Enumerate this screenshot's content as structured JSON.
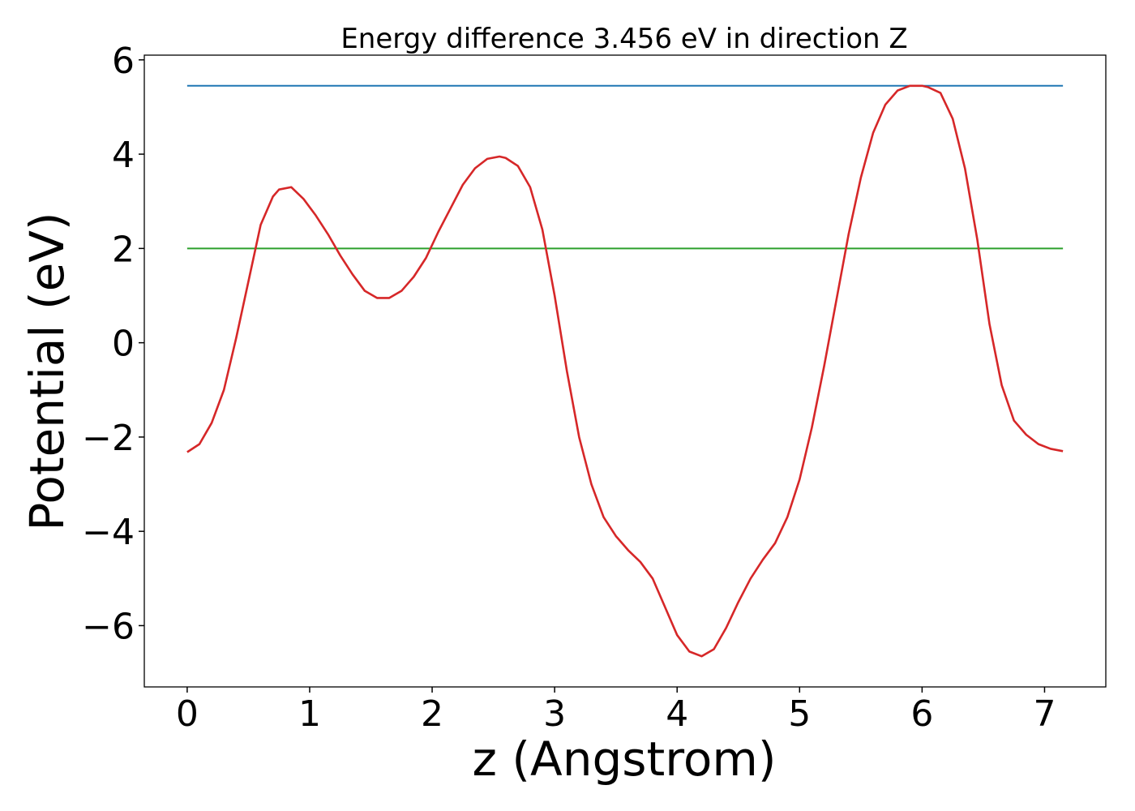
{
  "chart_data": {
    "type": "line",
    "title": "Energy difference 3.456 eV in direction Z",
    "xlabel": "z (Angstrom)",
    "ylabel": "Potential (eV)",
    "xlim": [
      -0.35,
      7.5
    ],
    "ylim": [
      -7.3,
      6.1
    ],
    "xticks": [
      0,
      1,
      2,
      3,
      4,
      5,
      6,
      7
    ],
    "yticks": [
      -6,
      -4,
      -2,
      0,
      2,
      4,
      6
    ],
    "xtick_labels": [
      "0",
      "1",
      "2",
      "3",
      "4",
      "5",
      "6",
      "7"
    ],
    "ytick_labels": [
      "−6",
      "−4",
      "−2",
      "0",
      "2",
      "4",
      "6"
    ],
    "grid": false,
    "series": [
      {
        "color": "#d62728",
        "x": [
          0,
          0.1,
          0.2,
          0.3,
          0.4,
          0.5,
          0.6,
          0.7,
          0.75,
          0.85,
          0.95,
          1.05,
          1.15,
          1.25,
          1.35,
          1.45,
          1.55,
          1.65,
          1.75,
          1.85,
          1.95,
          2.05,
          2.15,
          2.25,
          2.35,
          2.45,
          2.55,
          2.6,
          2.7,
          2.8,
          2.9,
          3.0,
          3.1,
          3.2,
          3.3,
          3.4,
          3.5,
          3.6,
          3.7,
          3.8,
          3.9,
          4.0,
          4.1,
          4.2,
          4.3,
          4.4,
          4.5,
          4.6,
          4.7,
          4.8,
          4.9,
          5.0,
          5.1,
          5.2,
          5.3,
          5.4,
          5.5,
          5.6,
          5.7,
          5.8,
          5.9,
          6.0,
          6.05,
          6.15,
          6.25,
          6.35,
          6.45,
          6.55,
          6.65,
          6.75,
          6.85,
          6.95,
          7.05,
          7.15
        ],
        "y": [
          -2.32,
          -2.15,
          -1.7,
          -1.0,
          0.1,
          1.3,
          2.5,
          3.1,
          3.25,
          3.3,
          3.05,
          2.7,
          2.3,
          1.85,
          1.45,
          1.1,
          0.95,
          0.95,
          1.1,
          1.4,
          1.8,
          2.35,
          2.85,
          3.35,
          3.7,
          3.9,
          3.95,
          3.92,
          3.75,
          3.3,
          2.4,
          1.0,
          -0.6,
          -2.0,
          -3.0,
          -3.7,
          -4.1,
          -4.4,
          -4.65,
          -5.0,
          -5.6,
          -6.2,
          -6.55,
          -6.65,
          -6.5,
          -6.05,
          -5.5,
          -5.0,
          -4.6,
          -4.25,
          -3.7,
          -2.9,
          -1.8,
          -0.5,
          0.9,
          2.3,
          3.5,
          4.45,
          5.05,
          5.35,
          5.45,
          5.45,
          5.42,
          5.3,
          4.75,
          3.7,
          2.2,
          0.4,
          -0.9,
          -1.65,
          -1.95,
          -2.15,
          -2.25,
          -2.3
        ]
      },
      {
        "color": "#1f77b4",
        "x": [
          0,
          7.15
        ],
        "y": [
          5.45,
          5.45
        ]
      },
      {
        "color": "#2ca02c",
        "x": [
          0,
          7.15
        ],
        "y": [
          2.0,
          2.0
        ]
      }
    ]
  }
}
